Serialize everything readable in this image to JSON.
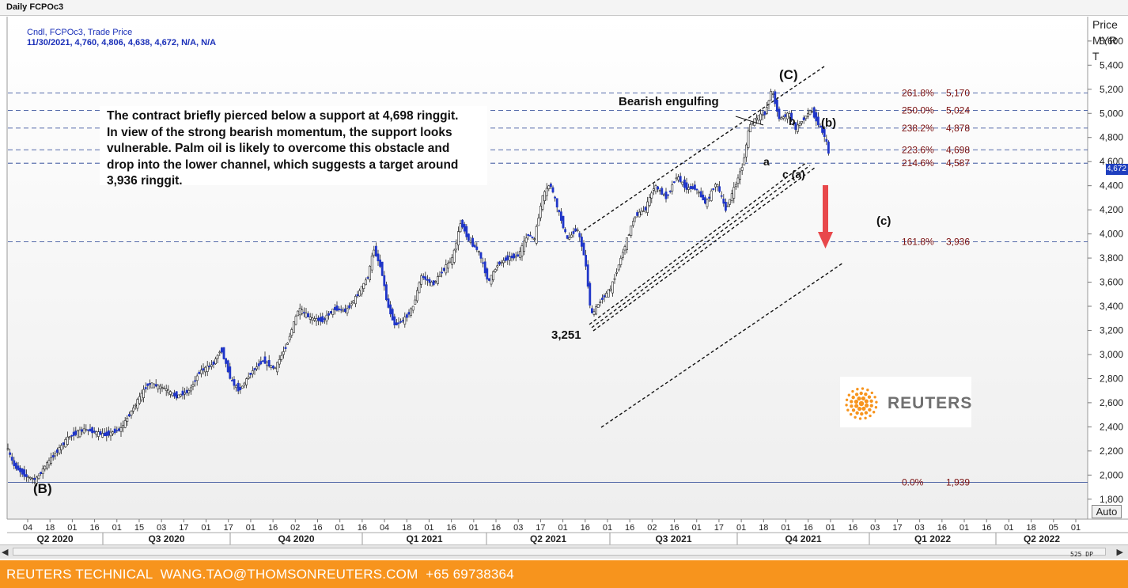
{
  "window": {
    "title": "Daily FCPOc3"
  },
  "legend": {
    "line1": "Cndl, FCPOc3, Trade Price",
    "line2": "11/30/2021, 4,760, 4,806, 4,638, 4,672, N/A, N/A"
  },
  "price_axis": {
    "label_line1": "Price",
    "label_line2": "MYR",
    "label_line3": "T",
    "last_price": "4,672"
  },
  "auto_button": "Auto",
  "zoom_label": "525 DP",
  "annotation": {
    "lines": [
      "The contract briefly pierced below a support at 4,698 ringgit.",
      "In view of the strong bearish momentum, the support looks",
      "vulnerable. Palm oil is likely to overcome this obstacle and",
      "drop into the lower channel, which suggests a target around",
      "3,936 ringgit."
    ]
  },
  "labels": {
    "wave_C": "(C)",
    "wave_B": "(B)",
    "wave_b_paren": "(b)",
    "wave_c_paren": "(c)",
    "wave_a": "a",
    "wave_b": "b",
    "wave_c_a": "c (a)",
    "low_price": "3,251",
    "bearish_engulfing": "Bearish engulfing"
  },
  "brand": {
    "logo_text": "REUTERS",
    "accent_color": "#f7941d"
  },
  "footer": {
    "text": "REUTERS TECHNICAL  WANG.TAO@THOMSONREUTERS.COM  +65 69738364"
  },
  "colors": {
    "fib_line": "#1f3b8f",
    "fib_label": "#7a1010",
    "candle_down": "#1f35c8",
    "candle_up": "#ffffff",
    "arrow": "#e8484b"
  },
  "chart_data": {
    "type": "candlestick",
    "title": "Daily FCPOc3",
    "ylabel": "Price MYR T",
    "ylim": [
      1700,
      5750
    ],
    "yticks": [
      "1,800",
      "2,000",
      "2,200",
      "2,400",
      "2,600",
      "2,800",
      "3,000",
      "3,200",
      "3,400",
      "3,600",
      "3,800",
      "4,000",
      "4,200",
      "4,400",
      "4,600",
      "4,800",
      "5,000",
      "5,200",
      "5,400",
      "5,600"
    ],
    "x_day_ticks": [
      "04",
      "18",
      "01",
      "16",
      "01",
      "15",
      "03",
      "17",
      "01",
      "17",
      "01",
      "16",
      "02",
      "16",
      "01",
      "16",
      "04",
      "18",
      "01",
      "16",
      "01",
      "16",
      "03",
      "17",
      "01",
      "16",
      "01",
      "16",
      "02",
      "16",
      "01",
      "17",
      "01",
      "18",
      "01",
      "16",
      "01",
      "16",
      "03",
      "17",
      "03",
      "16",
      "01",
      "16",
      "01",
      "18",
      "05",
      "01"
    ],
    "quarters": [
      "Q2 2020",
      "Q3 2020",
      "Q4 2020",
      "Q1 2021",
      "Q2 2021",
      "Q3 2021",
      "Q4 2021",
      "Q1 2022",
      "Q2 2022"
    ],
    "fib_levels": [
      {
        "label": "261.8%",
        "value": "5,170",
        "price": 5170
      },
      {
        "label": "250.0%",
        "value": "5,024",
        "price": 5024
      },
      {
        "label": "238.2%",
        "value": "4,878",
        "price": 4878
      },
      {
        "label": "223.6%",
        "value": "4,698",
        "price": 4698
      },
      {
        "label": "214.6%",
        "value": "4,587",
        "price": 4587
      },
      {
        "label": "161.8%",
        "value": "3,936",
        "price": 3936
      },
      {
        "label": "0.0%",
        "value": "1,939",
        "price": 1939
      }
    ],
    "path": [
      [
        0,
        2250
      ],
      [
        10,
        2080
      ],
      [
        25,
        1990
      ],
      [
        38,
        1960
      ],
      [
        50,
        2080
      ],
      [
        65,
        2200
      ],
      [
        80,
        2320
      ],
      [
        100,
        2380
      ],
      [
        125,
        2330
      ],
      [
        145,
        2380
      ],
      [
        165,
        2600
      ],
      [
        180,
        2760
      ],
      [
        200,
        2720
      ],
      [
        215,
        2650
      ],
      [
        232,
        2700
      ],
      [
        245,
        2860
      ],
      [
        262,
        2920
      ],
      [
        272,
        3050
      ],
      [
        285,
        2780
      ],
      [
        295,
        2700
      ],
      [
        310,
        2850
      ],
      [
        325,
        2950
      ],
      [
        340,
        2880
      ],
      [
        355,
        3080
      ],
      [
        370,
        3380
      ],
      [
        385,
        3300
      ],
      [
        400,
        3280
      ],
      [
        415,
        3380
      ],
      [
        430,
        3360
      ],
      [
        445,
        3500
      ],
      [
        458,
        3650
      ],
      [
        465,
        3880
      ],
      [
        475,
        3700
      ],
      [
        482,
        3420
      ],
      [
        492,
        3240
      ],
      [
        505,
        3300
      ],
      [
        515,
        3400
      ],
      [
        525,
        3650
      ],
      [
        540,
        3580
      ],
      [
        555,
        3720
      ],
      [
        565,
        3800
      ],
      [
        575,
        4100
      ],
      [
        585,
        3950
      ],
      [
        598,
        3850
      ],
      [
        610,
        3600
      ],
      [
        622,
        3750
      ],
      [
        635,
        3800
      ],
      [
        648,
        3820
      ],
      [
        660,
        4000
      ],
      [
        668,
        3950
      ],
      [
        678,
        4300
      ],
      [
        688,
        4420
      ],
      [
        698,
        4200
      ],
      [
        710,
        3950
      ],
      [
        722,
        4050
      ],
      [
        732,
        3800
      ],
      [
        740,
        3320
      ],
      [
        752,
        3450
      ],
      [
        765,
        3550
      ],
      [
        775,
        3750
      ],
      [
        785,
        3950
      ],
      [
        795,
        4150
      ],
      [
        808,
        4200
      ],
      [
        820,
        4400
      ],
      [
        835,
        4300
      ],
      [
        848,
        4480
      ],
      [
        860,
        4380
      ],
      [
        872,
        4380
      ],
      [
        885,
        4250
      ],
      [
        898,
        4430
      ],
      [
        910,
        4200
      ],
      [
        922,
        4400
      ],
      [
        932,
        4580
      ],
      [
        940,
        4900
      ],
      [
        950,
        4970
      ],
      [
        960,
        5000
      ],
      [
        968,
        5200
      ],
      [
        978,
        4950
      ],
      [
        990,
        5000
      ],
      [
        998,
        4870
      ],
      [
        1008,
        4950
      ],
      [
        1018,
        5030
      ],
      [
        1028,
        4900
      ],
      [
        1036,
        4800
      ],
      [
        1040,
        4672
      ]
    ]
  }
}
